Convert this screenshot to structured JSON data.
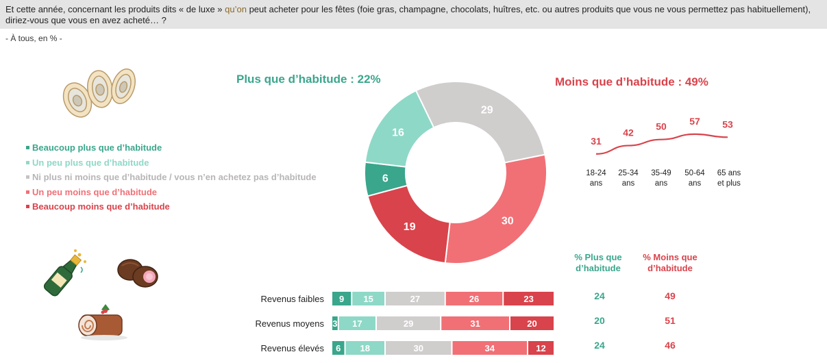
{
  "question": {
    "text_before": "Et cette année, concernant les produits dits « de luxe » ",
    "text_highlight": "qu’on",
    "text_after": " peut acheter pour les fêtes (foie gras, champagne, chocolats, huîtres, etc. ou autres produits que vous ne vous permettez pas habituellement), diriez-vous que vous en avez acheté… ?"
  },
  "base": "- À tous, en %  -",
  "colors": {
    "beaucoup_plus": "#3aa68c",
    "un_peu_plus": "#8ed8c7",
    "ni_plus_ni_moins": "#d0cdcd",
    "un_peu_moins": "#f07076",
    "beaucoup_moins": "#d9434b"
  },
  "icons": [
    "oysters-icon",
    "champagne-icon",
    "chocolates-icon",
    "yule-log-icon"
  ],
  "chart_data": [
    {
      "type": "pie",
      "title": "",
      "categories": [
        "Beaucoup plus que d’habitude",
        "Un peu plus que d’habitude",
        "Ni plus ni moins que d’habitude / vous n’en achetez pas d’habitude",
        "Un peu moins que d’habitude",
        "Beaucoup moins que d’habitude"
      ],
      "values": [
        6,
        16,
        29,
        30,
        19
      ],
      "summary_plus": "Plus que d’habitude : 22%",
      "summary_moins": "Moins que d’habitude : 49%"
    },
    {
      "type": "line",
      "title": "Moins que d’habitude : 49%",
      "categories": [
        "18-24|ans",
        "25-34|ans",
        "35-49|ans",
        "50-64|ans",
        "65 ans|et plus"
      ],
      "values": [
        31,
        42,
        50,
        57,
        53
      ],
      "ylim": [
        20,
        65
      ]
    },
    {
      "type": "bar",
      "orientation": "horizontal-stacked",
      "categories": [
        "Revenus faibles",
        "Revenus moyens",
        "Revenus élevés"
      ],
      "series": [
        {
          "name": "Beaucoup plus que d’habitude",
          "values": [
            9,
            3,
            6
          ]
        },
        {
          "name": "Un peu plus que d’habitude",
          "values": [
            15,
            17,
            18
          ]
        },
        {
          "name": "Ni plus ni moins que d’habitude / vous n’en achetez pas d’habitude",
          "values": [
            27,
            29,
            30
          ]
        },
        {
          "name": "Un peu moins que d’habitude",
          "values": [
            26,
            31,
            34
          ]
        },
        {
          "name": "Beaucoup moins que d’habitude",
          "values": [
            23,
            20,
            12
          ]
        }
      ],
      "column_headers": [
        "% Plus que|d’habitude",
        "% Moins que|d’habitude"
      ],
      "plus_totals": [
        24,
        20,
        24
      ],
      "moins_totals": [
        49,
        51,
        46
      ]
    }
  ]
}
